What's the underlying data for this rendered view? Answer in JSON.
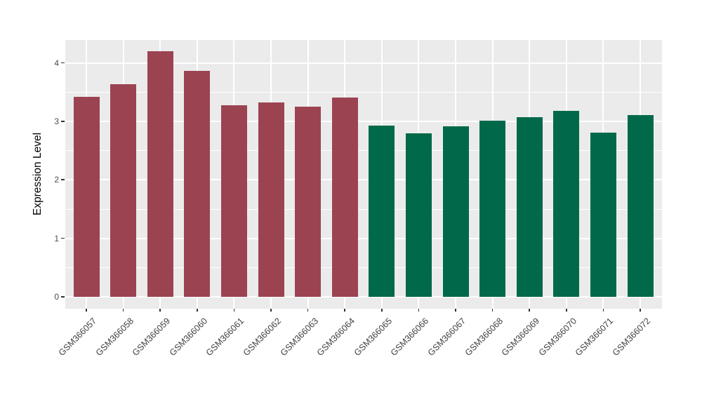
{
  "figure": {
    "background": "#FFFFFF"
  },
  "chart_data": {
    "type": "bar",
    "title": "",
    "xlabel": "",
    "ylabel": "Expression Level",
    "categories": [
      "GSM366057",
      "GSM366058",
      "GSM366059",
      "GSM366060",
      "GSM366061",
      "GSM366062",
      "GSM366063",
      "GSM366064",
      "GSM366065",
      "GSM366066",
      "GSM366067",
      "GSM366068",
      "GSM366069",
      "GSM366070",
      "GSM366071",
      "GSM366072"
    ],
    "values": [
      3.42,
      3.64,
      4.2,
      3.87,
      3.28,
      3.33,
      3.25,
      3.41,
      2.93,
      2.8,
      2.92,
      3.01,
      3.07,
      3.18,
      2.81,
      3.11
    ],
    "bar_colors": [
      "#9C4352",
      "#9C4352",
      "#9C4352",
      "#9C4352",
      "#9C4352",
      "#9C4352",
      "#9C4352",
      "#9C4352",
      "#00694A",
      "#00694A",
      "#00694A",
      "#00694A",
      "#00694A",
      "#00694A",
      "#00694A",
      "#00694A"
    ],
    "group_colors": {
      "left_group": "#9C4352",
      "right_group": "#00694A"
    },
    "yticks": [
      0,
      1,
      2,
      3,
      4
    ],
    "minor_yticks": [
      0.5,
      1.5,
      2.5,
      3.5
    ],
    "ylim": [
      -0.19,
      4.4
    ],
    "grid": true,
    "legend_position": "none",
    "panel_background": "#EBEBEB",
    "gridline_color": "#FFFFFF",
    "tick_color": "#333333",
    "tick_label_color": "#4D4D4D",
    "axis_title_color": "#000000"
  }
}
